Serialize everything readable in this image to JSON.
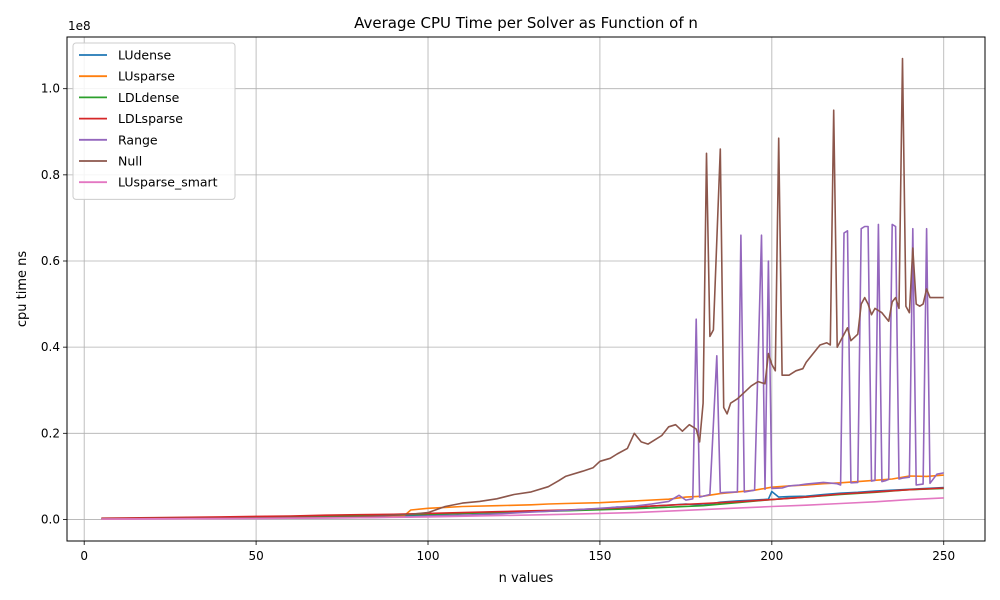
{
  "chart_data": {
    "type": "line",
    "title": "Average CPU Time per Solver as Function of n",
    "xlabel": "n values",
    "ylabel": "cpu time ns",
    "y_multiplier_label": "1e8",
    "y_multiplier": 100000000,
    "xlim": [
      -5,
      262
    ],
    "ylim": [
      -5000000,
      112000000
    ],
    "x_ticks": [
      0,
      50,
      100,
      150,
      200,
      250
    ],
    "x_tick_labels": [
      "0",
      "50",
      "100",
      "150",
      "200",
      "250"
    ],
    "y_ticks": [
      0,
      20000000,
      40000000,
      60000000,
      80000000,
      100000000
    ],
    "y_tick_labels": [
      "0.0",
      "0.2",
      "0.4",
      "0.6",
      "0.8",
      "1.0"
    ],
    "grid": true,
    "legend_position": "top-left",
    "series": [
      {
        "name": "LUdense",
        "color": "#1f77b4",
        "points": [
          [
            5,
            0.2
          ],
          [
            20,
            0.2
          ],
          [
            40,
            0.3
          ],
          [
            60,
            0.5
          ],
          [
            80,
            0.8
          ],
          [
            95,
            0.9
          ],
          [
            100,
            1.0
          ],
          [
            110,
            1.4
          ],
          [
            120,
            1.6
          ],
          [
            130,
            1.9
          ],
          [
            140,
            2.1
          ],
          [
            150,
            2.4
          ],
          [
            155,
            2.9
          ],
          [
            160,
            2.6
          ],
          [
            165,
            3.1
          ],
          [
            170,
            3.3
          ],
          [
            175,
            3.6
          ],
          [
            180,
            3.3
          ],
          [
            185,
            4.0
          ],
          [
            190,
            4.3
          ],
          [
            195,
            4.5
          ],
          [
            199,
            4.7
          ],
          [
            200,
            6.5
          ],
          [
            202,
            5.2
          ],
          [
            205,
            5.3
          ],
          [
            210,
            5.4
          ],
          [
            215,
            5.8
          ],
          [
            220,
            6.1
          ],
          [
            225,
            6.3
          ],
          [
            230,
            6.6
          ],
          [
            235,
            6.8
          ],
          [
            240,
            7.0
          ],
          [
            245,
            7.2
          ],
          [
            250,
            7.4
          ]
        ]
      },
      {
        "name": "LUsparse",
        "color": "#ff7f0e",
        "points": [
          [
            5,
            0.1
          ],
          [
            20,
            0.2
          ],
          [
            40,
            0.3
          ],
          [
            60,
            0.4
          ],
          [
            80,
            0.6
          ],
          [
            93,
            0.8
          ],
          [
            95,
            2.2
          ],
          [
            100,
            2.6
          ],
          [
            105,
            2.8
          ],
          [
            110,
            3.0
          ],
          [
            120,
            3.2
          ],
          [
            130,
            3.4
          ],
          [
            135,
            3.6
          ],
          [
            140,
            3.7
          ],
          [
            150,
            3.9
          ],
          [
            160,
            4.3
          ],
          [
            170,
            4.7
          ],
          [
            175,
            5.2
          ],
          [
            180,
            5.4
          ],
          [
            185,
            6.0
          ],
          [
            190,
            6.4
          ],
          [
            195,
            6.8
          ],
          [
            200,
            7.5
          ],
          [
            205,
            7.8
          ],
          [
            210,
            8.0
          ],
          [
            215,
            8.3
          ],
          [
            220,
            8.5
          ],
          [
            225,
            8.8
          ],
          [
            230,
            9.1
          ],
          [
            235,
            9.4
          ],
          [
            240,
            10.1
          ],
          [
            245,
            10.0
          ],
          [
            250,
            10.3
          ]
        ]
      },
      {
        "name": "LDLdense",
        "color": "#2ca02c",
        "points": [
          [
            5,
            0.2
          ],
          [
            20,
            0.3
          ],
          [
            40,
            0.5
          ],
          [
            60,
            0.7
          ],
          [
            80,
            0.9
          ],
          [
            100,
            1.2
          ],
          [
            120,
            1.6
          ],
          [
            140,
            2.0
          ],
          [
            160,
            2.5
          ],
          [
            180,
            3.2
          ],
          [
            200,
            4.6
          ],
          [
            210,
            5.2
          ],
          [
            220,
            5.8
          ],
          [
            230,
            6.3
          ],
          [
            240,
            6.9
          ],
          [
            250,
            7.2
          ]
        ]
      },
      {
        "name": "LDLsparse",
        "color": "#d62728",
        "points": [
          [
            5,
            0.3
          ],
          [
            20,
            0.4
          ],
          [
            40,
            0.6
          ],
          [
            60,
            0.8
          ],
          [
            70,
            1.0
          ],
          [
            80,
            1.1
          ],
          [
            90,
            1.2
          ],
          [
            100,
            1.4
          ],
          [
            110,
            1.6
          ],
          [
            120,
            1.8
          ],
          [
            130,
            2.0
          ],
          [
            140,
            2.2
          ],
          [
            150,
            2.5
          ],
          [
            160,
            2.9
          ],
          [
            170,
            3.3
          ],
          [
            180,
            3.7
          ],
          [
            190,
            4.1
          ],
          [
            200,
            4.6
          ],
          [
            210,
            5.2
          ],
          [
            220,
            5.9
          ],
          [
            230,
            6.4
          ],
          [
            240,
            6.9
          ],
          [
            250,
            7.3
          ]
        ]
      },
      {
        "name": "Range",
        "color": "#9467bd",
        "points": [
          [
            5,
            0.1
          ],
          [
            40,
            0.2
          ],
          [
            80,
            0.4
          ],
          [
            95,
            0.6
          ],
          [
            100,
            0.8
          ],
          [
            110,
            1.0
          ],
          [
            120,
            1.3
          ],
          [
            130,
            1.7
          ],
          [
            140,
            2.1
          ],
          [
            150,
            2.6
          ],
          [
            160,
            3.1
          ],
          [
            165,
            3.6
          ],
          [
            170,
            4.2
          ],
          [
            173,
            5.6
          ],
          [
            175,
            4.5
          ],
          [
            177,
            4.8
          ],
          [
            178,
            46.5
          ],
          [
            179,
            5.2
          ],
          [
            182,
            5.8
          ],
          [
            184,
            38.0
          ],
          [
            185,
            6.2
          ],
          [
            187,
            6.3
          ],
          [
            190,
            6.4
          ],
          [
            191,
            66.0
          ],
          [
            192,
            6.4
          ],
          [
            195,
            6.8
          ],
          [
            197,
            66.0
          ],
          [
            198,
            7.0
          ],
          [
            199,
            60.0
          ],
          [
            200,
            7.2
          ],
          [
            203,
            7.3
          ],
          [
            205,
            7.8
          ],
          [
            208,
            8.0
          ],
          [
            210,
            8.2
          ],
          [
            215,
            8.6
          ],
          [
            219,
            8.3
          ],
          [
            220,
            8.0
          ],
          [
            221,
            66.5
          ],
          [
            222,
            67.0
          ],
          [
            223,
            8.5
          ],
          [
            225,
            8.6
          ],
          [
            226,
            67.5
          ],
          [
            227,
            68.0
          ],
          [
            228,
            68.0
          ],
          [
            229,
            8.9
          ],
          [
            230,
            9.1
          ],
          [
            231,
            68.5
          ],
          [
            232,
            8.8
          ],
          [
            233,
            9.0
          ],
          [
            234,
            9.3
          ],
          [
            235,
            68.5
          ],
          [
            236,
            68.0
          ],
          [
            237,
            9.4
          ],
          [
            238,
            9.6
          ],
          [
            240,
            9.8
          ],
          [
            241,
            67.5
          ],
          [
            242,
            8.0
          ],
          [
            244,
            8.2
          ],
          [
            245,
            67.5
          ],
          [
            246,
            8.4
          ],
          [
            248,
            10.5
          ],
          [
            250,
            10.8
          ]
        ]
      },
      {
        "name": "Null",
        "color": "#8c564b",
        "points": [
          [
            5,
            0.2
          ],
          [
            40,
            0.3
          ],
          [
            80,
            0.6
          ],
          [
            95,
            1.2
          ],
          [
            100,
            1.6
          ],
          [
            105,
            3.0
          ],
          [
            110,
            3.8
          ],
          [
            115,
            4.2
          ],
          [
            120,
            4.8
          ],
          [
            125,
            5.8
          ],
          [
            130,
            6.4
          ],
          [
            135,
            7.6
          ],
          [
            138,
            9.0
          ],
          [
            140,
            10.0
          ],
          [
            145,
            11.2
          ],
          [
            148,
            12.0
          ],
          [
            150,
            13.5
          ],
          [
            153,
            14.2
          ],
          [
            155,
            15.2
          ],
          [
            158,
            16.5
          ],
          [
            160,
            20.0
          ],
          [
            162,
            18.0
          ],
          [
            164,
            17.5
          ],
          [
            166,
            18.5
          ],
          [
            168,
            19.5
          ],
          [
            170,
            21.5
          ],
          [
            172,
            22.0
          ],
          [
            174,
            20.5
          ],
          [
            176,
            22.0
          ],
          [
            178,
            21.0
          ],
          [
            179,
            18.0
          ],
          [
            180,
            27.0
          ],
          [
            181,
            85.0
          ],
          [
            182,
            42.5
          ],
          [
            183,
            44.0
          ],
          [
            185,
            86.0
          ],
          [
            186,
            26.0
          ],
          [
            187,
            24.5
          ],
          [
            188,
            27.0
          ],
          [
            190,
            28.0
          ],
          [
            192,
            29.5
          ],
          [
            194,
            31.0
          ],
          [
            196,
            32.0
          ],
          [
            198,
            31.5
          ],
          [
            199,
            38.5
          ],
          [
            200,
            36.0
          ],
          [
            201,
            34.5
          ],
          [
            202,
            88.5
          ],
          [
            203,
            33.5
          ],
          [
            205,
            33.5
          ],
          [
            207,
            34.5
          ],
          [
            209,
            35.0
          ],
          [
            210,
            36.5
          ],
          [
            212,
            38.5
          ],
          [
            214,
            40.5
          ],
          [
            216,
            41.0
          ],
          [
            217,
            40.5
          ],
          [
            218,
            95.0
          ],
          [
            219,
            40.0
          ],
          [
            220,
            41.5
          ],
          [
            222,
            44.5
          ],
          [
            223,
            41.5
          ],
          [
            225,
            43.0
          ],
          [
            226,
            50.0
          ],
          [
            227,
            51.5
          ],
          [
            228,
            50.0
          ],
          [
            229,
            47.5
          ],
          [
            230,
            49.0
          ],
          [
            232,
            48.0
          ],
          [
            234,
            46.0
          ],
          [
            235,
            50.5
          ],
          [
            236,
            51.5
          ],
          [
            237,
            49.0
          ],
          [
            238,
            107.0
          ],
          [
            239,
            49.5
          ],
          [
            240,
            48.0
          ],
          [
            241,
            63.0
          ],
          [
            242,
            50.0
          ],
          [
            243,
            49.5
          ],
          [
            244,
            50.0
          ],
          [
            245,
            53.5
          ],
          [
            246,
            51.5
          ],
          [
            248,
            51.5
          ],
          [
            250,
            51.5
          ]
        ]
      },
      {
        "name": "LUsparse_smart",
        "color": "#e377c2",
        "points": [
          [
            5,
            0.1
          ],
          [
            40,
            0.2
          ],
          [
            80,
            0.4
          ],
          [
            100,
            0.6
          ],
          [
            120,
            0.9
          ],
          [
            140,
            1.2
          ],
          [
            160,
            1.6
          ],
          [
            180,
            2.3
          ],
          [
            200,
            3.0
          ],
          [
            210,
            3.3
          ],
          [
            220,
            3.7
          ],
          [
            230,
            4.1
          ],
          [
            240,
            4.6
          ],
          [
            250,
            5.0
          ]
        ]
      }
    ]
  }
}
